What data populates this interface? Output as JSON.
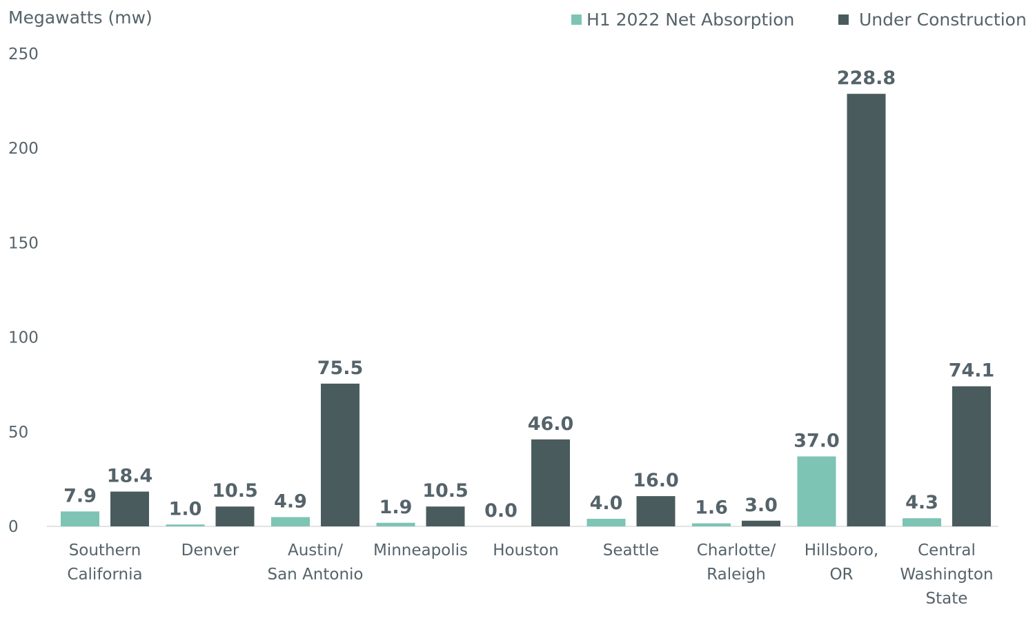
{
  "chart_data": {
    "type": "bar",
    "ylabel": "Megawatts (mw)",
    "ylim": [
      0,
      250
    ],
    "yticks": [
      0,
      50,
      100,
      150,
      200,
      250
    ],
    "grid": false,
    "legend_position": "top-right",
    "categories": [
      [
        "Southern",
        "California"
      ],
      [
        "Denver"
      ],
      [
        "Austin/",
        "San Antonio"
      ],
      [
        "Minneapolis"
      ],
      [
        "Houston"
      ],
      [
        "Seattle"
      ],
      [
        "Charlotte/",
        "Raleigh"
      ],
      [
        "Hillsboro,",
        "OR"
      ],
      [
        "Central",
        "Washington",
        "State"
      ]
    ],
    "series": [
      {
        "name": "H1 2022 Net Absorption",
        "color": "#7dc4b5",
        "values": [
          7.9,
          1.0,
          4.9,
          1.9,
          0.0,
          4.0,
          1.6,
          37.0,
          4.3
        ],
        "labels": [
          "7.9",
          "1.0",
          "4.9",
          "1.9",
          "0.0",
          "4.0",
          "1.6",
          "37.0",
          "4.3"
        ]
      },
      {
        "name": "Under Construction",
        "color": "#4a5b5e",
        "values": [
          18.4,
          10.5,
          75.5,
          10.5,
          46.0,
          16.0,
          3.0,
          228.8,
          74.1
        ],
        "labels": [
          "18.4",
          "10.5",
          "75.5",
          "10.5",
          "46.0",
          "16.0",
          "3.0",
          "228.8",
          "74.1"
        ]
      }
    ]
  }
}
